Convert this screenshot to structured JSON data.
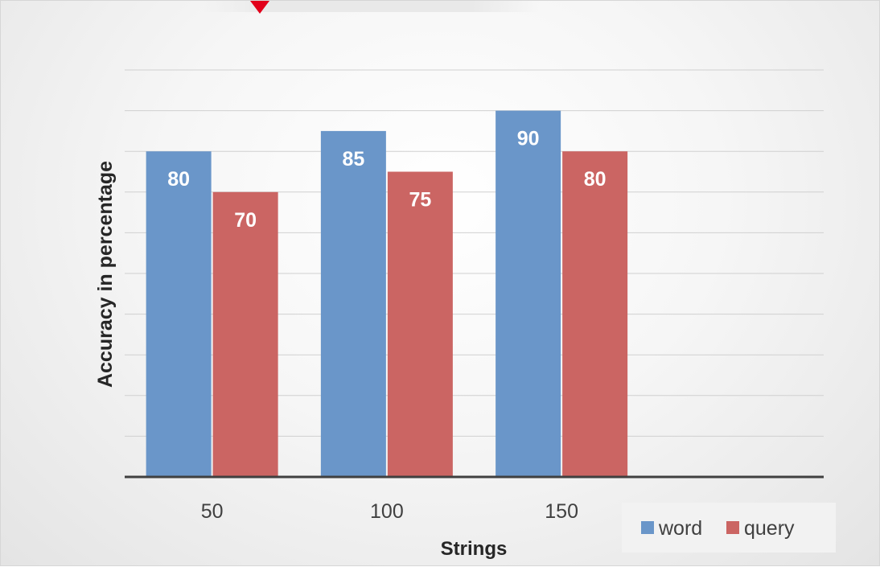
{
  "chart_data": {
    "type": "bar",
    "categories": [
      "50",
      "100",
      "150"
    ],
    "series": [
      {
        "name": "word",
        "values": [
          80,
          85,
          90
        ],
        "color": "#6a96c9"
      },
      {
        "name": "query",
        "values": [
          70,
          75,
          80
        ],
        "color": "#cb6563"
      }
    ],
    "xlabel": "Strings",
    "ylabel": "Accuracy in percentage",
    "ylim": [
      0,
      100
    ],
    "gridlines": true,
    "data_labels": true,
    "legend_position": "bottom-right",
    "colors": {
      "label_text": "#ffffff",
      "axis_line": "#404040",
      "gridline": "#d0d0d0",
      "tick_text": "#404040"
    }
  }
}
